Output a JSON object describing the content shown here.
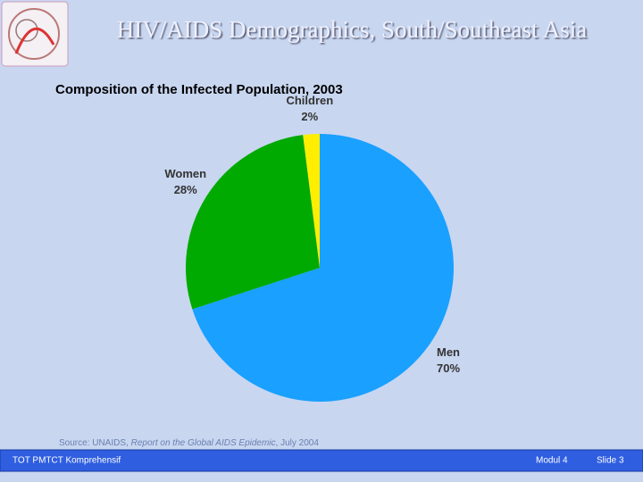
{
  "header": {
    "title": "HIV/AIDS Demographics, South/Southeast Asia"
  },
  "chart_data": {
    "type": "pie",
    "title": "Composition of the Infected Population, 2003",
    "categories": [
      "Men",
      "Women",
      "Children"
    ],
    "values": [
      70,
      28,
      2
    ],
    "value_labels": [
      "70%",
      "28%",
      "2%"
    ],
    "colors": [
      "#1aa0ff",
      "#00aa00",
      "#ffee00"
    ]
  },
  "source": {
    "prefix": "Source: UNAIDS, ",
    "work": "Report on the Global AIDS Epidemic",
    "date": ", July 2004"
  },
  "footer": {
    "left": "TOT PMTCT Komprehensif",
    "module": "Modul 4",
    "slide": "Slide 3"
  }
}
